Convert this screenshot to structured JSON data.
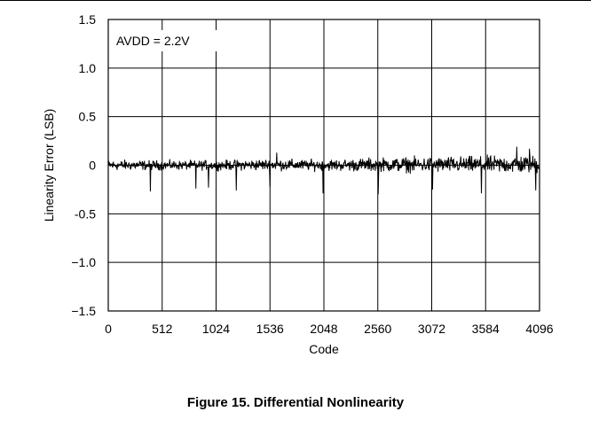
{
  "caption": "Figure 15. Differential Nonlinearity",
  "chart_data": {
    "type": "line",
    "xlabel": "Code",
    "ylabel": "Linearity Error (LSB)",
    "annotation": "AVDD = 2.2V",
    "xlim": [
      0,
      4096
    ],
    "ylim": [
      -1.5,
      1.5
    ],
    "x_ticks": [
      0,
      512,
      1024,
      1536,
      2048,
      2560,
      3072,
      3584,
      4096
    ],
    "x_tick_labels": [
      "0",
      "512",
      "1024",
      "1536",
      "2048",
      "2560",
      "3072",
      "3584",
      "4096"
    ],
    "y_ticks": [
      1.5,
      1.0,
      0.5,
      0,
      -0.5,
      -1.0,
      -1.5
    ],
    "y_tick_labels": [
      "1.5",
      "1.0",
      "0.5",
      "0",
      "-0.5",
      "−1.0",
      "−1.5"
    ],
    "grid": true,
    "series": [
      {
        "line_color": "#000000",
        "noise_envelope": {
          "x": [
            0,
            512,
            1024,
            1536,
            2048,
            2560,
            3072,
            3584,
            4096
          ],
          "upper": [
            0.08,
            0.07,
            0.07,
            0.09,
            0.08,
            0.11,
            0.12,
            0.13,
            0.15
          ],
          "lower": [
            -0.08,
            -0.07,
            -0.07,
            -0.08,
            -0.08,
            -0.1,
            -0.11,
            -0.12,
            -0.13
          ]
        },
        "spikes": [
          {
            "x": 400,
            "y": -0.27
          },
          {
            "x": 830,
            "y": -0.24
          },
          {
            "x": 950,
            "y": -0.23
          },
          {
            "x": 1215,
            "y": -0.26
          },
          {
            "x": 1535,
            "y": -0.22
          },
          {
            "x": 2040,
            "y": -0.29
          },
          {
            "x": 2565,
            "y": -0.3
          },
          {
            "x": 3080,
            "y": -0.25
          },
          {
            "x": 3545,
            "y": -0.29
          },
          {
            "x": 4060,
            "y": -0.26
          },
          {
            "x": 1600,
            "y": 0.13
          },
          {
            "x": 3880,
            "y": 0.19
          },
          {
            "x": 4000,
            "y": 0.17
          }
        ]
      }
    ]
  }
}
